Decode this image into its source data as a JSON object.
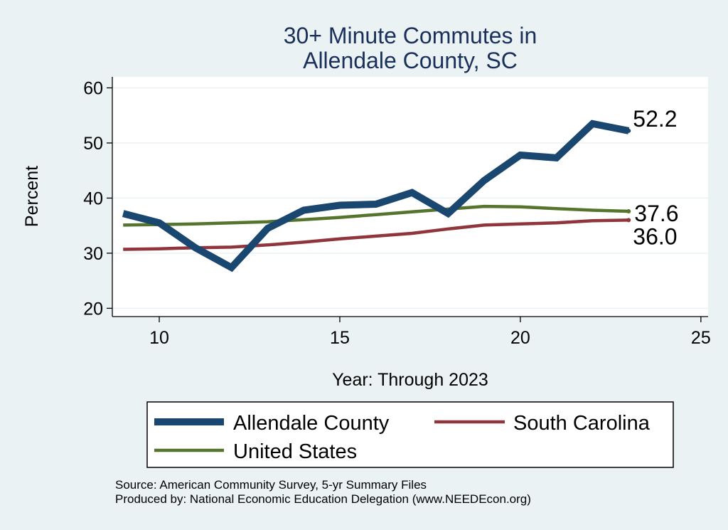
{
  "chart_data": {
    "type": "line",
    "title_lines": [
      "30+ Minute Commutes in",
      "Allendale County, SC"
    ],
    "xlabel": "Year: Through 2023",
    "ylabel": "Percent",
    "xlim": [
      8.7,
      25.2
    ],
    "ylim": [
      18.5,
      62
    ],
    "xticks": [
      10,
      15,
      20,
      25
    ],
    "yticks": [
      20,
      30,
      40,
      50,
      60
    ],
    "grid": true,
    "legend_position": "bottom",
    "series": [
      {
        "name": "Allendale County",
        "color": "#1a476f",
        "x": [
          9,
          10,
          11,
          12,
          13,
          14,
          15,
          16,
          17,
          18,
          19,
          20,
          21,
          22,
          23
        ],
        "y": [
          37.2,
          35.5,
          31.0,
          27.4,
          34.5,
          37.8,
          38.7,
          38.9,
          41.0,
          37.2,
          43.2,
          47.8,
          47.3,
          53.5,
          52.2
        ],
        "end_label": "52.2"
      },
      {
        "name": "South Carolina",
        "color": "#90353b",
        "x": [
          9,
          10,
          11,
          12,
          13,
          14,
          15,
          16,
          17,
          18,
          19,
          20,
          21,
          22,
          23
        ],
        "y": [
          30.7,
          30.8,
          31.0,
          31.1,
          31.5,
          32.0,
          32.6,
          33.1,
          33.6,
          34.4,
          35.1,
          35.3,
          35.5,
          35.9,
          36.0
        ],
        "end_label": "36.0"
      },
      {
        "name": "United States",
        "color": "#55752f",
        "x": [
          9,
          10,
          11,
          12,
          13,
          14,
          15,
          16,
          17,
          18,
          19,
          20,
          21,
          22,
          23
        ],
        "y": [
          35.1,
          35.2,
          35.3,
          35.5,
          35.7,
          36.1,
          36.5,
          37.0,
          37.5,
          38.0,
          38.5,
          38.4,
          38.1,
          37.8,
          37.6
        ],
        "end_label": "37.6"
      }
    ],
    "notes": [
      "Source: American Community Survey, 5-yr Summary Files",
      "Produced by: National Economic Education Delegation (www.NEEDEcon.org)"
    ]
  }
}
